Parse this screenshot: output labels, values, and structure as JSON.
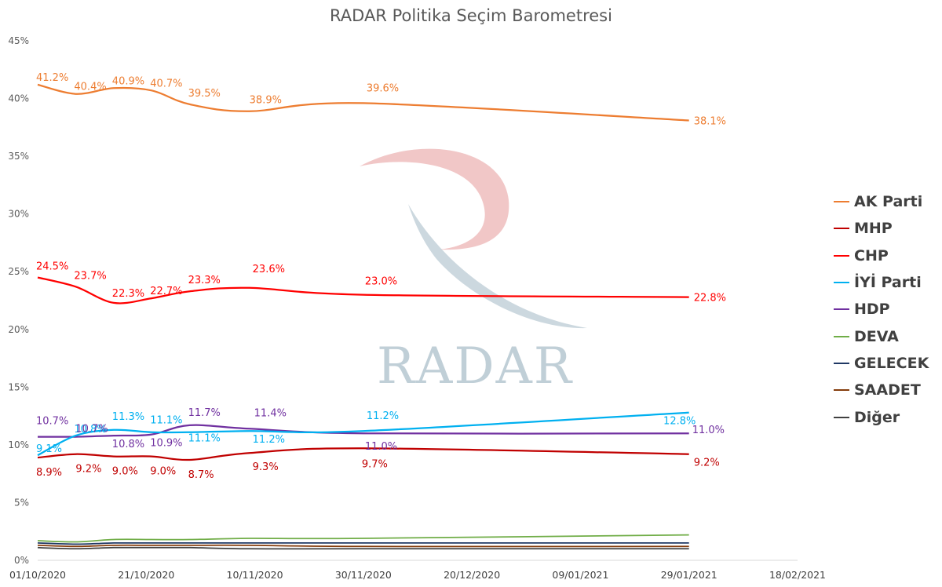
{
  "colors": {
    "ak": "#ED7D31",
    "mhp": "#C00000",
    "chp": "#FF0000",
    "iyi": "#00B0F0",
    "hdp": "#7030A0",
    "deva": "#70AD47",
    "gelecek": "#1F3864",
    "saadet": "#843C0C",
    "diger": "#404040",
    "watermark_red": "#C00000",
    "watermark_blue": "#8EA9B8"
  },
  "watermark": {
    "text": "RADAR"
  },
  "chart_data": {
    "type": "line",
    "title": "RADAR Politika Seçim Barometresi",
    "x_ticks": [
      "01/10/2020",
      "21/10/2020",
      "10/11/2020",
      "30/11/2020",
      "20/12/2020",
      "09/01/2021",
      "29/01/2021",
      "18/02/2021"
    ],
    "xlim": [
      "2020-10-01",
      "2021-02-18"
    ],
    "ylim": [
      0,
      45
    ],
    "y_ticks": [
      "0%",
      "5%",
      "10%",
      "15%",
      "20%",
      "25%",
      "30%",
      "35%",
      "40%",
      "45%"
    ],
    "grid": false,
    "legend_position": "right",
    "series": [
      {
        "key": "ak",
        "name": "AK Parti",
        "points": [
          {
            "x": "2020-10-01",
            "y": 41.2,
            "label": "41.2%"
          },
          {
            "x": "2020-10-08",
            "y": 40.4,
            "label": "40.4%"
          },
          {
            "x": "2020-10-15",
            "y": 40.9,
            "label": "40.9%"
          },
          {
            "x": "2020-10-22",
            "y": 40.7,
            "label": "40.7%"
          },
          {
            "x": "2020-10-29",
            "y": 39.5,
            "label": "39.5%"
          },
          {
            "x": "2020-11-09",
            "y": 38.9,
            "label": "38.9%"
          },
          {
            "x": "2020-11-30",
            "y": 39.6,
            "label": "39.6%"
          },
          {
            "x": "2021-01-29",
            "y": 38.1,
            "label": "38.1%"
          }
        ]
      },
      {
        "key": "mhp",
        "name": "MHP",
        "points": [
          {
            "x": "2020-10-01",
            "y": 8.9,
            "label": "8.9%"
          },
          {
            "x": "2020-10-08",
            "y": 9.2,
            "label": "9.2%"
          },
          {
            "x": "2020-10-15",
            "y": 9.0,
            "label": "9.0%"
          },
          {
            "x": "2020-10-22",
            "y": 9.0,
            "label": "9.0%"
          },
          {
            "x": "2020-10-29",
            "y": 8.7,
            "label": "8.7%"
          },
          {
            "x": "2020-11-09",
            "y": 9.3,
            "label": "9.3%"
          },
          {
            "x": "2020-11-30",
            "y": 9.7,
            "label": "9.7%"
          },
          {
            "x": "2021-01-29",
            "y": 9.2,
            "label": "9.2%"
          }
        ]
      },
      {
        "key": "chp",
        "name": "CHP",
        "points": [
          {
            "x": "2020-10-01",
            "y": 24.5,
            "label": "24.5%"
          },
          {
            "x": "2020-10-08",
            "y": 23.7,
            "label": "23.7%"
          },
          {
            "x": "2020-10-15",
            "y": 22.3,
            "label": "22.3%"
          },
          {
            "x": "2020-10-22",
            "y": 22.7,
            "label": "22.7%"
          },
          {
            "x": "2020-10-29",
            "y": 23.3,
            "label": "23.3%"
          },
          {
            "x": "2020-11-09",
            "y": 23.6,
            "label": "23.6%"
          },
          {
            "x": "2020-11-30",
            "y": 23.0,
            "label": "23.0%"
          },
          {
            "x": "2021-01-29",
            "y": 22.8,
            "label": "22.8%"
          }
        ]
      },
      {
        "key": "iyi",
        "name": "İYİ Parti",
        "points": [
          {
            "x": "2020-10-01",
            "y": 9.1,
            "label": "9.1%"
          },
          {
            "x": "2020-10-08",
            "y": 10.8,
            "label": "10.8%"
          },
          {
            "x": "2020-10-15",
            "y": 11.3,
            "label": "11.3%"
          },
          {
            "x": "2020-10-22",
            "y": 11.1,
            "label": "11.1%"
          },
          {
            "x": "2020-10-29",
            "y": 11.1,
            "label": "11.1%"
          },
          {
            "x": "2020-11-09",
            "y": 11.2,
            "label": "11.2%"
          },
          {
            "x": "2020-11-30",
            "y": 11.2,
            "label": "11.2%"
          },
          {
            "x": "2021-01-29",
            "y": 12.8,
            "label": "12.8%"
          }
        ]
      },
      {
        "key": "hdp",
        "name": "HDP",
        "points": [
          {
            "x": "2020-10-01",
            "y": 10.7,
            "label": "10.7%"
          },
          {
            "x": "2020-10-08",
            "y": 10.7,
            "label": "10.7%"
          },
          {
            "x": "2020-10-15",
            "y": 10.8,
            "label": "10.8%"
          },
          {
            "x": "2020-10-22",
            "y": 10.9,
            "label": "10.9%"
          },
          {
            "x": "2020-10-29",
            "y": 11.7,
            "label": "11.7%"
          },
          {
            "x": "2020-11-09",
            "y": 11.4,
            "label": "11.4%"
          },
          {
            "x": "2020-11-30",
            "y": 11.0,
            "label": "11.0%"
          },
          {
            "x": "2021-01-29",
            "y": 11.0,
            "label": "11.0%"
          }
        ]
      },
      {
        "key": "deva",
        "name": "DEVA",
        "points": [
          {
            "x": "2020-10-01",
            "y": 1.7
          },
          {
            "x": "2020-10-08",
            "y": 1.6
          },
          {
            "x": "2020-10-15",
            "y": 1.8
          },
          {
            "x": "2020-10-22",
            "y": 1.8
          },
          {
            "x": "2020-10-29",
            "y": 1.8
          },
          {
            "x": "2020-11-09",
            "y": 1.9
          },
          {
            "x": "2020-11-30",
            "y": 1.9
          },
          {
            "x": "2021-01-29",
            "y": 2.2
          }
        ]
      },
      {
        "key": "gelecek",
        "name": "GELECEK",
        "points": [
          {
            "x": "2020-10-01",
            "y": 1.5
          },
          {
            "x": "2020-10-08",
            "y": 1.4
          },
          {
            "x": "2020-10-15",
            "y": 1.5
          },
          {
            "x": "2020-10-22",
            "y": 1.5
          },
          {
            "x": "2020-10-29",
            "y": 1.5
          },
          {
            "x": "2020-11-09",
            "y": 1.5
          },
          {
            "x": "2020-11-30",
            "y": 1.5
          },
          {
            "x": "2021-01-29",
            "y": 1.5
          }
        ]
      },
      {
        "key": "saadet",
        "name": "SAADET",
        "points": [
          {
            "x": "2020-10-01",
            "y": 1.3
          },
          {
            "x": "2020-10-08",
            "y": 1.2
          },
          {
            "x": "2020-10-15",
            "y": 1.3
          },
          {
            "x": "2020-10-22",
            "y": 1.3
          },
          {
            "x": "2020-10-29",
            "y": 1.3
          },
          {
            "x": "2020-11-09",
            "y": 1.3
          },
          {
            "x": "2020-11-30",
            "y": 1.2
          },
          {
            "x": "2021-01-29",
            "y": 1.2
          }
        ]
      },
      {
        "key": "diger",
        "name": "Diğer",
        "points": [
          {
            "x": "2020-10-01",
            "y": 1.1
          },
          {
            "x": "2020-10-08",
            "y": 1.0
          },
          {
            "x": "2020-10-15",
            "y": 1.1
          },
          {
            "x": "2020-10-22",
            "y": 1.1
          },
          {
            "x": "2020-10-29",
            "y": 1.1
          },
          {
            "x": "2020-11-09",
            "y": 1.0
          },
          {
            "x": "2020-11-30",
            "y": 1.0
          },
          {
            "x": "2021-01-29",
            "y": 1.0
          }
        ]
      }
    ]
  }
}
